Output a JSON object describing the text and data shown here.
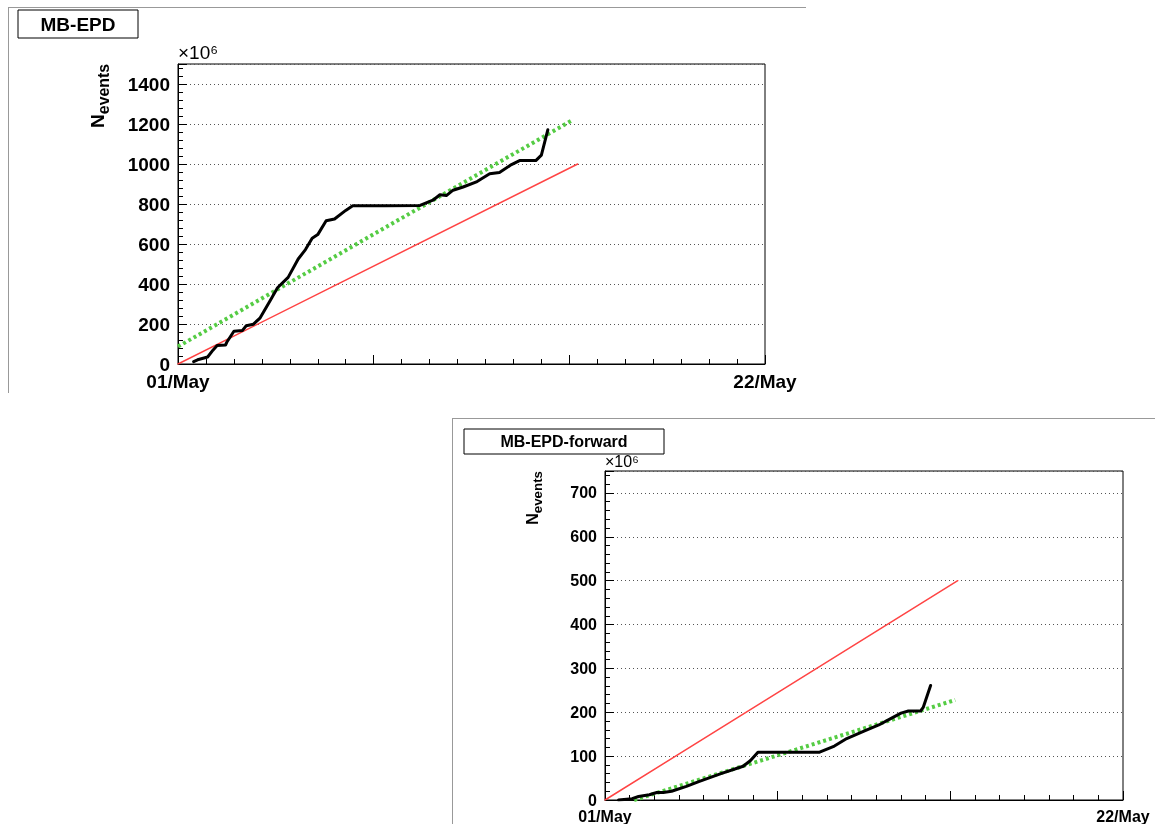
{
  "chart_data": [
    {
      "type": "line",
      "title": "MB-EPD",
      "ylabel": "N$_{events}$",
      "annotations": [
        "×10⁶"
      ],
      "xlim": [
        "--05-01",
        "--05-22"
      ],
      "xticks": [
        {
          "value": "--05-01",
          "label": "01/May"
        },
        {
          "value": "--05-08",
          "label": null
        },
        {
          "value": "--05-15",
          "label": null
        },
        {
          "value": "--05-22",
          "label": "22/May"
        }
      ],
      "ylim": [
        0,
        1500
      ],
      "yticks": [
        0,
        200,
        400,
        600,
        800,
        1000,
        1200,
        1400
      ],
      "grid": "y",
      "series": [
        {
          "color": "#ff4444",
          "x": [
            "--05-01T00:00",
            "--05-15T07:12"
          ],
          "values": [
            0,
            1000
          ]
        },
        {
          "color": "#55cc44",
          "line_style": "dotted",
          "x": [
            "--05-01T00:00",
            "--05-15T03:22"
          ],
          "values": [
            87,
            1222
          ]
        },
        {
          "color": "#000000",
          "x": [
            "--05-01T13:26",
            "--05-01T16:48",
            "--05-01T21:36",
            "--05-02T01:26",
            "--05-02T06:00",
            "--05-02T09:36",
            "--05-02T16:48",
            "--05-02T18:00",
            "--05-03T00:00",
            "--05-03T07:12",
            "--05-03T10:34",
            "--05-03T16:48",
            "--05-03T22:34",
            "--05-04T07:12",
            "--05-04T13:26",
            "--05-04T22:34",
            "--05-05T07:12",
            "--05-05T13:26",
            "--05-05T19:12",
            "--05-06T00:00",
            "--05-06T07:12",
            "--05-06T14:24",
            "--05-07T00:00",
            "--05-07T06:00",
            "--05-08T09:36",
            "--05-09T15:50",
            "--05-10T02:53",
            "--05-10T08:53",
            "--05-10T14:24",
            "--05-10T20:10",
            "--05-11T04:48",
            "--05-11T16:48",
            "--05-12T03:36",
            "--05-12T12:00",
            "--05-12T22:19",
            "--05-13T05:17",
            "--05-13T19:12",
            "--05-14T00:00",
            "--05-14T05:31"
          ],
          "values": [
            12,
            21,
            29,
            35,
            69,
            92,
            95,
            110,
            164,
            167,
            191,
            199,
            231,
            318,
            381,
            433,
            525,
            572,
            629,
            647,
            716,
            725,
            768,
            791,
            791,
            793,
            819,
            846,
            842,
            869,
            885,
            912,
            951,
            958,
            997,
            1017,
            1017,
            1044,
            1171
          ]
        }
      ]
    },
    {
      "type": "line",
      "title": "MB-EPD-forward",
      "ylabel": "N$_{events}$",
      "annotations": [
        "×10⁶"
      ],
      "xlim": [
        "--05-01",
        "--05-22"
      ],
      "xticks": [
        {
          "value": "--05-01",
          "label": "01/May"
        },
        {
          "value": "--05-08",
          "label": null
        },
        {
          "value": "--05-15",
          "label": null
        },
        {
          "value": "--05-22",
          "label": "22/May"
        }
      ],
      "ylim": [
        0,
        750
      ],
      "yticks": [
        0,
        100,
        200,
        300,
        400,
        500,
        600,
        700
      ],
      "grid": "y",
      "series": [
        {
          "color": "#ff4444",
          "x": [
            "--05-01T00:00",
            "--05-15T07:12"
          ],
          "values": [
            0,
            500
          ]
        },
        {
          "color": "#55cc44",
          "line_style": "dotted",
          "x": [
            "--05-02T04:19",
            "--05-15T04:48"
          ],
          "values": [
            0,
            228
          ]
        },
        {
          "color": "#000000",
          "x": [
            "--05-01T13:12",
            "--05-02T02:24",
            "--05-02T08:38",
            "--05-02T19:12",
            "--05-03T02:24",
            "--05-03T08:38",
            "--05-03T16:48",
            "--05-04T07:12",
            "--05-04T19:12",
            "--05-05T16:48",
            "--05-06T14:24",
            "--05-06T21:36",
            "--05-07T04:48",
            "--05-08T07:12",
            "--05-09T16:48",
            "--05-10T07:12",
            "--05-10T19:12",
            "--05-11T12:00",
            "--05-12T02:24",
            "--05-12T14:24",
            "--05-13T00:00",
            "--05-13T07:12",
            "--05-13T19:12",
            "--05-13T21:36",
            "--05-14T04:48"
          ],
          "values": [
            0,
            3,
            8,
            12,
            17,
            17,
            20,
            31,
            42,
            60,
            77,
            90,
            109,
            109,
            109,
            123,
            140,
            157,
            171,
            186,
            198,
            203,
            203,
            211,
            261
          ]
        }
      ]
    }
  ]
}
